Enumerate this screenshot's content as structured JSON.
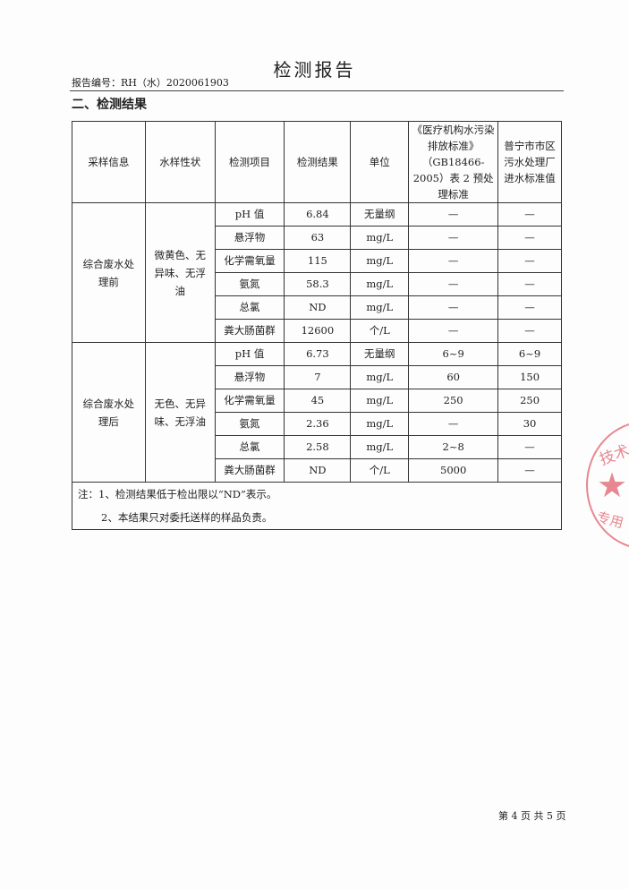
{
  "title": "检测报告",
  "report_no": "报告编号：RH（水）2020061903",
  "section": "二、检测结果",
  "headers": [
    "采样信息",
    "水样性状",
    "检测项目",
    "检测结果",
    "单位",
    "《医疗机构水污染排放标准》（GB18466-2005）表 2 预处理标准",
    "普宁市市区污水处理厂进水标准值"
  ],
  "groups": [
    {
      "sample": "综合废水处理前",
      "state": "微黄色、无异味、无浮油",
      "rows": [
        [
          "pH 值",
          "6.84",
          "无量纲",
          "—",
          "—"
        ],
        [
          "悬浮物",
          "63",
          "mg/L",
          "—",
          "—"
        ],
        [
          "化学需氧量",
          "115",
          "mg/L",
          "—",
          "—"
        ],
        [
          "氨氮",
          "58.3",
          "mg/L",
          "—",
          "—"
        ],
        [
          "总氯",
          "ND",
          "mg/L",
          "—",
          "—"
        ],
        [
          "粪大肠菌群",
          "12600",
          "个/L",
          "—",
          "—"
        ]
      ]
    },
    {
      "sample": "综合废水处理后",
      "state": "无色、无异味、无浮油",
      "rows": [
        [
          "pH 值",
          "6.73",
          "无量纲",
          "6~9",
          "6~9"
        ],
        [
          "悬浮物",
          "7",
          "mg/L",
          "60",
          "150"
        ],
        [
          "化学需氧量",
          "45",
          "mg/L",
          "250",
          "250"
        ],
        [
          "氨氮",
          "2.36",
          "mg/L",
          "—",
          "30"
        ],
        [
          "总氯",
          "2.58",
          "mg/L",
          "2~8",
          "—"
        ],
        [
          "粪大肠菌群",
          "ND",
          "个/L",
          "5000",
          "—"
        ]
      ]
    }
  ],
  "notes": [
    "注：1、检测结果低于检出限以“ND”表示。",
    "2、本结果只对委托送样的样品负责。"
  ],
  "footer": "第 4 页 共 5 页",
  "stamp": {
    "top": "技术",
    "bottom": "专用",
    "color": "#e0606c"
  }
}
